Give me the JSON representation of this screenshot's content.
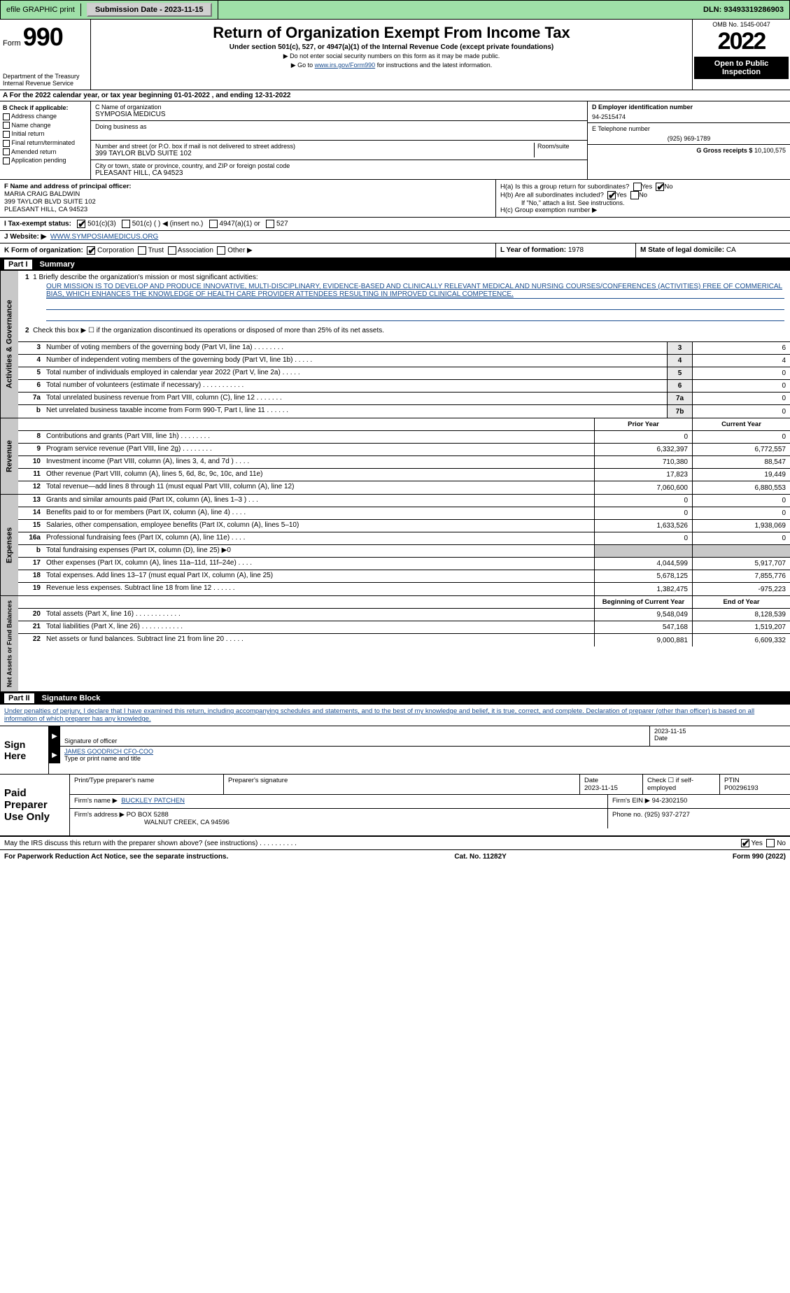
{
  "topbar": {
    "efile": "efile GRAPHIC print",
    "submission_label": "Submission Date - 2023-11-15",
    "dln": "DLN: 93493319286903"
  },
  "header": {
    "form_label": "Form",
    "form_number": "990",
    "dept1": "Department of the Treasury",
    "dept2": "Internal Revenue Service",
    "title": "Return of Organization Exempt From Income Tax",
    "subtitle": "Under section 501(c), 527, or 4947(a)(1) of the Internal Revenue Code (except private foundations)",
    "note1": "▶ Do not enter social security numbers on this form as it may be made public.",
    "note2_pre": "▶ Go to ",
    "note2_link": "www.irs.gov/Form990",
    "note2_post": " for instructions and the latest information.",
    "omb": "OMB No. 1545-0047",
    "year": "2022",
    "open": "Open to Public Inspection"
  },
  "sectionA": "A For the 2022 calendar year, or tax year beginning 01-01-2022    , and ending 12-31-2022",
  "boxB": {
    "label": "B Check if applicable:",
    "items": [
      "Address change",
      "Name change",
      "Initial return",
      "Final return/terminated",
      "Amended return",
      "Application pending"
    ]
  },
  "boxC": {
    "name_label": "C Name of organization",
    "name": "SYMPOSIA MEDICUS",
    "dba_label": "Doing business as",
    "addr_label": "Number and street (or P.O. box if mail is not delivered to street address)",
    "room_label": "Room/suite",
    "addr": "399 TAYLOR BLVD SUITE 102",
    "city_label": "City or town, state or province, country, and ZIP or foreign postal code",
    "city": "PLEASANT HILL, CA  94523"
  },
  "boxD": {
    "label": "D Employer identification number",
    "val": "94-2515474"
  },
  "boxE": {
    "label": "E Telephone number",
    "val": "(925) 969-1789"
  },
  "boxG": {
    "label": "G Gross receipts $",
    "val": "10,100,575"
  },
  "boxF": {
    "label": "F Name and address of principal officer:",
    "name": "MARIA CRAIG BALDWIN",
    "addr1": "399 TAYLOR BLVD SUITE 102",
    "addr2": "PLEASANT HILL, CA  94523"
  },
  "boxH": {
    "a": "H(a)  Is this a group return for subordinates?",
    "b": "H(b)  Are all subordinates included?",
    "b_note": "If \"No,\" attach a list. See instructions.",
    "c": "H(c)  Group exemption number ▶",
    "yes": "Yes",
    "no": "No"
  },
  "boxI": {
    "label": "I   Tax-exempt status:",
    "opts": [
      "501(c)(3)",
      "501(c) (  ) ◀ (insert no.)",
      "4947(a)(1) or",
      "527"
    ]
  },
  "boxJ": {
    "label": "J   Website: ▶",
    "val": "WWW.SYMPOSIAMEDICUS.ORG"
  },
  "boxK": {
    "label": "K Form of organization:",
    "opts": [
      "Corporation",
      "Trust",
      "Association",
      "Other ▶"
    ]
  },
  "boxL": {
    "label": "L Year of formation:",
    "val": "1978"
  },
  "boxM": {
    "label": "M State of legal domicile:",
    "val": "CA"
  },
  "part1": {
    "hdr": "Part I",
    "title": "Summary",
    "q1_label": "1  Briefly describe the organization's mission or most significant activities:",
    "mission": "OUR MISSION IS TO DEVELOP AND PRODUCE INNOVATIVE, MULTI-DISCIPLINARY, EVIDENCE-BASED AND CLINICALLY RELEVANT MEDICAL AND NURSING COURSES/CONFERENCES (ACTIVITIES) FREE OF COMMERICAL BIAS, WHICH ENHANCES THE KNOWLEDGE OF HEALTH CARE PROVIDER ATTENDEES RESULTING IN IMPROVED CLINICAL COMPETENCE.",
    "q2": "Check this box ▶ ☐  if the organization discontinued its operations or disposed of more than 25% of its net assets."
  },
  "vtabs": {
    "gov": "Activities & Governance",
    "rev": "Revenue",
    "exp": "Expenses",
    "net": "Net Assets or Fund Balances"
  },
  "gov_lines": [
    {
      "n": "3",
      "d": "Number of voting members of the governing body (Part VI, line 1a)   .    .    .    .    .    .    .    .",
      "box": "3",
      "v": "6"
    },
    {
      "n": "4",
      "d": "Number of independent voting members of the governing body (Part VI, line 1b)  .    .    .    .    .",
      "box": "4",
      "v": "4"
    },
    {
      "n": "5",
      "d": "Total number of individuals employed in calendar year 2022 (Part V, line 2a)  .    .    .    .    .",
      "box": "5",
      "v": "0"
    },
    {
      "n": "6",
      "d": "Total number of volunteers (estimate if necessary)    .    .    .    .    .    .    .    .    .    .    .",
      "box": "6",
      "v": "0"
    },
    {
      "n": "7a",
      "d": "Total unrelated business revenue from Part VIII, column (C), line 12   .    .    .    .    .    .    .",
      "box": "7a",
      "v": "0"
    },
    {
      "n": "b",
      "d": "Net unrelated business taxable income from Form 990-T, Part I, line 11   .    .    .    .    .    .",
      "box": "7b",
      "v": "0"
    }
  ],
  "col_hdrs": {
    "prior": "Prior Year",
    "current": "Current Year",
    "boy": "Beginning of Current Year",
    "eoy": "End of Year"
  },
  "rev_lines": [
    {
      "n": "8",
      "d": "Contributions and grants (Part VIII, line 1h)   .    .    .    .    .    .    .    .",
      "p": "0",
      "c": "0"
    },
    {
      "n": "9",
      "d": "Program service revenue (Part VIII, line 2g)   .    .    .    .    .    .    .    .",
      "p": "6,332,397",
      "c": "6,772,557"
    },
    {
      "n": "10",
      "d": "Investment income (Part VIII, column (A), lines 3, 4, and 7d )   .    .    .    .",
      "p": "710,380",
      "c": "88,547"
    },
    {
      "n": "11",
      "d": "Other revenue (Part VIII, column (A), lines 5, 6d, 8c, 9c, 10c, and 11e)",
      "p": "17,823",
      "c": "19,449"
    },
    {
      "n": "12",
      "d": "Total revenue—add lines 8 through 11 (must equal Part VIII, column (A), line 12)",
      "p": "7,060,600",
      "c": "6,880,553"
    }
  ],
  "exp_lines": [
    {
      "n": "13",
      "d": "Grants and similar amounts paid (Part IX, column (A), lines 1–3 )   .    .    .",
      "p": "0",
      "c": "0"
    },
    {
      "n": "14",
      "d": "Benefits paid to or for members (Part IX, column (A), line 4)   .    .    .    .",
      "p": "0",
      "c": "0"
    },
    {
      "n": "15",
      "d": "Salaries, other compensation, employee benefits (Part IX, column (A), lines 5–10)",
      "p": "1,633,526",
      "c": "1,938,069"
    },
    {
      "n": "16a",
      "d": "Professional fundraising fees (Part IX, column (A), line 11e)   .    .    .    .",
      "p": "0",
      "c": "0"
    },
    {
      "n": "b",
      "d": "Total fundraising expenses (Part IX, column (D), line 25) ▶0",
      "shade": true
    },
    {
      "n": "17",
      "d": "Other expenses (Part IX, column (A), lines 11a–11d, 11f–24e)   .    .    .    .",
      "p": "4,044,599",
      "c": "5,917,707"
    },
    {
      "n": "18",
      "d": "Total expenses. Add lines 13–17 (must equal Part IX, column (A), line 25)",
      "p": "5,678,125",
      "c": "7,855,776"
    },
    {
      "n": "19",
      "d": "Revenue less expenses. Subtract line 18 from line 12   .    .    .    .    .    .",
      "p": "1,382,475",
      "c": "-975,223"
    }
  ],
  "net_lines": [
    {
      "n": "20",
      "d": "Total assets (Part X, line 16)   .    .    .    .    .    .    .    .    .    .    .    .",
      "p": "9,548,049",
      "c": "8,128,539"
    },
    {
      "n": "21",
      "d": "Total liabilities (Part X, line 26)   .    .    .    .    .    .    .    .    .    .    .",
      "p": "547,168",
      "c": "1,519,207"
    },
    {
      "n": "22",
      "d": "Net assets or fund balances. Subtract line 21 from line 20   .    .    .    .    .",
      "p": "9,000,881",
      "c": "6,609,332"
    }
  ],
  "part2": {
    "hdr": "Part II",
    "title": "Signature Block",
    "decl": "Under penalties of perjury, I declare that I have examined this return, including accompanying schedules and statements, and to the best of my knowledge and belief, it is true, correct, and complete. Declaration of preparer (other than officer) is based on all information of which preparer has any knowledge."
  },
  "sign": {
    "lbl": "Sign Here",
    "sig_of_officer": "Signature of officer",
    "date": "Date",
    "date_val": "2023-11-15",
    "name": "JAMES GOODRICH  CFO-COO",
    "name_label": "Type or print name and title"
  },
  "prep": {
    "lbl": "Paid Preparer Use Only",
    "h_name": "Print/Type preparer's name",
    "h_sig": "Preparer's signature",
    "h_date": "Date",
    "date_val": "2023-11-15",
    "h_self": "Check ☐ if self-employed",
    "h_ptin": "PTIN",
    "ptin": "P00296193",
    "firm_name_lbl": "Firm's name      ▶",
    "firm_name": "BUCKLEY PATCHEN",
    "firm_ein_lbl": "Firm's EIN ▶",
    "firm_ein": "94-2302150",
    "firm_addr_lbl": "Firm's address ▶",
    "firm_addr1": "PO BOX 5288",
    "firm_addr2": "WALNUT CREEK, CA  94596",
    "phone_lbl": "Phone no.",
    "phone": "(925) 937-2727"
  },
  "discuss": {
    "q": "May the IRS discuss this return with the preparer shown above? (see instructions)   .    .    .    .    .    .    .    .    .    .",
    "yes": "Yes",
    "no": "No"
  },
  "footer": {
    "left": "For Paperwork Reduction Act Notice, see the separate instructions.",
    "mid": "Cat. No. 11282Y",
    "right": "Form 990 (2022)"
  }
}
